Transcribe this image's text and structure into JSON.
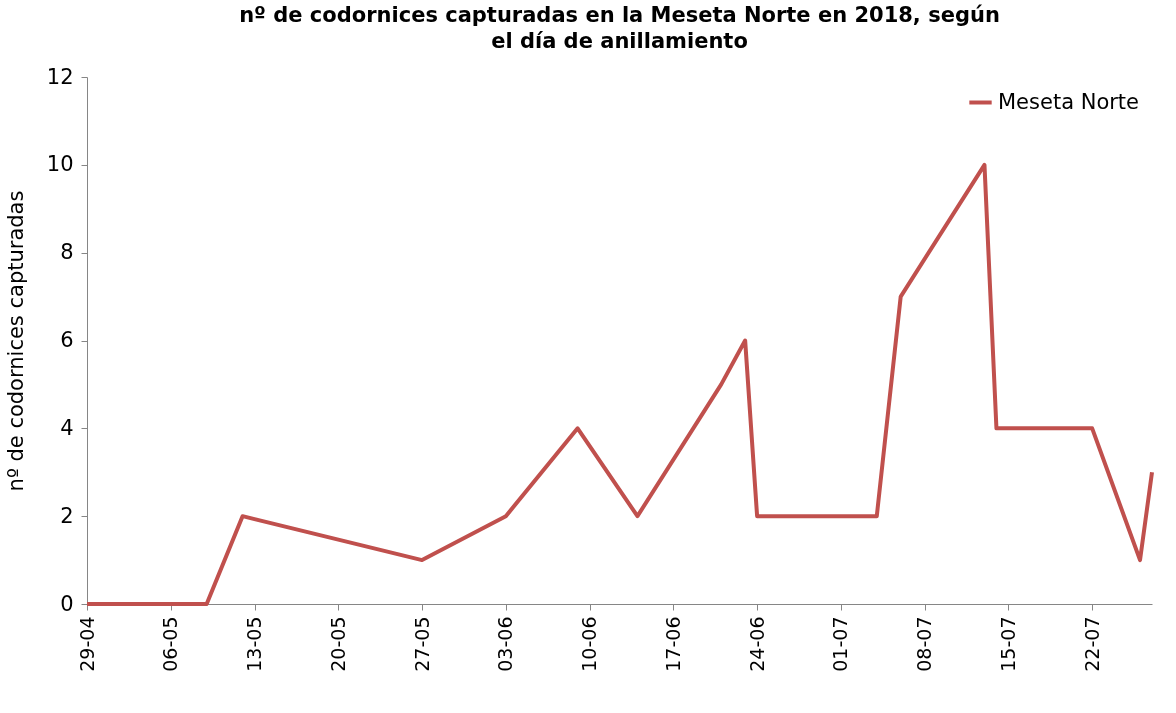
{
  "chart_data": {
    "type": "line",
    "title": "nº de codornices capturadas en la Meseta Norte en 2018, según el día de anillamiento",
    "ylabel": "nº de codornices capturadas",
    "x": [
      "--04-29",
      "--05-09",
      "--05-12",
      "--05-27",
      "--06-03",
      "--06-09",
      "--06-14",
      "--06-21",
      "--06-23",
      "--06-24",
      "--07-04",
      "--07-06",
      "--07-13",
      "--07-14",
      "--07-22",
      "--07-26",
      "--07-27"
    ],
    "series": [
      {
        "name": "Meseta Norte",
        "color": "#c0504d",
        "values": [
          0,
          0,
          2,
          1,
          2,
          4,
          2,
          5,
          6,
          2,
          2,
          7,
          10,
          4,
          4,
          1,
          3
        ]
      }
    ],
    "xlim": [
      "--04-29",
      "--07-27"
    ],
    "xticks": [
      {
        "value": "--04-29",
        "label": "29-04"
      },
      {
        "value": "--05-06",
        "label": "06-05"
      },
      {
        "value": "--05-13",
        "label": "13-05"
      },
      {
        "value": "--05-20",
        "label": "20-05"
      },
      {
        "value": "--05-27",
        "label": "27-05"
      },
      {
        "value": "--06-03",
        "label": "03-06"
      },
      {
        "value": "--06-10",
        "label": "10-06"
      },
      {
        "value": "--06-17",
        "label": "17-06"
      },
      {
        "value": "--06-24",
        "label": "24-06"
      },
      {
        "value": "--07-01",
        "label": "01-07"
      },
      {
        "value": "--07-08",
        "label": "08-07"
      },
      {
        "value": "--07-15",
        "label": "15-07"
      },
      {
        "value": "--07-22",
        "label": "22-07"
      }
    ],
    "ylim": [
      0,
      12
    ],
    "yticks": [
      0,
      2,
      4,
      6,
      8,
      10,
      12
    ],
    "grid": false,
    "legend": "top right",
    "marker": "none",
    "line_style": "solid"
  }
}
